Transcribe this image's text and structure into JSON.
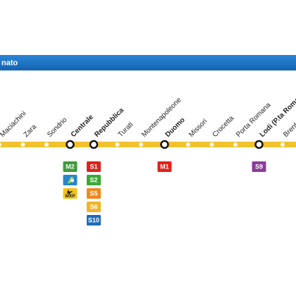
{
  "header": {
    "title": "nato"
  },
  "line": {
    "color": "#f2c12e"
  },
  "stations": [
    {
      "name": "Maciachini"
    },
    {
      "name": "Zara"
    },
    {
      "name": "Sondrio"
    },
    {
      "name": "Centrale",
      "badges": [
        {
          "label": "M2",
          "color": "#3f9b37",
          "text_color": "#ffffff"
        },
        {
          "label": null,
          "color": "#2b86c9",
          "text_color": "#ffffff"
        },
        {
          "label": "MXP",
          "color": "#f2c31c",
          "text_color": "#222222"
        }
      ]
    },
    {
      "name": "Repubblica",
      "badges": [
        {
          "label": "S1",
          "color": "#d9261c",
          "text_color": "#ffffff"
        },
        {
          "label": "S2",
          "color": "#3aa935",
          "text_color": "#ffffff"
        },
        {
          "label": "S5",
          "color": "#ef8a1e",
          "text_color": "#ffffff"
        },
        {
          "label": "S6",
          "color": "#f1b424",
          "text_color": "#ffffff"
        },
        {
          "label": "S10",
          "color": "#1f6db4",
          "text_color": "#ffffff"
        }
      ]
    },
    {
      "name": "Turati"
    },
    {
      "name": "Montenapoleone"
    },
    {
      "name": "Duomo",
      "badges": [
        {
          "label": "M1",
          "color": "#e2231a",
          "text_color": "#ffffff"
        }
      ]
    },
    {
      "name": "Missori"
    },
    {
      "name": "Crocetta"
    },
    {
      "name": "Porta Romana"
    },
    {
      "name": "Lodi (P.ta Romana)",
      "badges": [
        {
          "label": "S9",
          "color": "#8b3e97",
          "text_color": "#ffffff"
        }
      ]
    },
    {
      "name": "Brenta"
    }
  ]
}
